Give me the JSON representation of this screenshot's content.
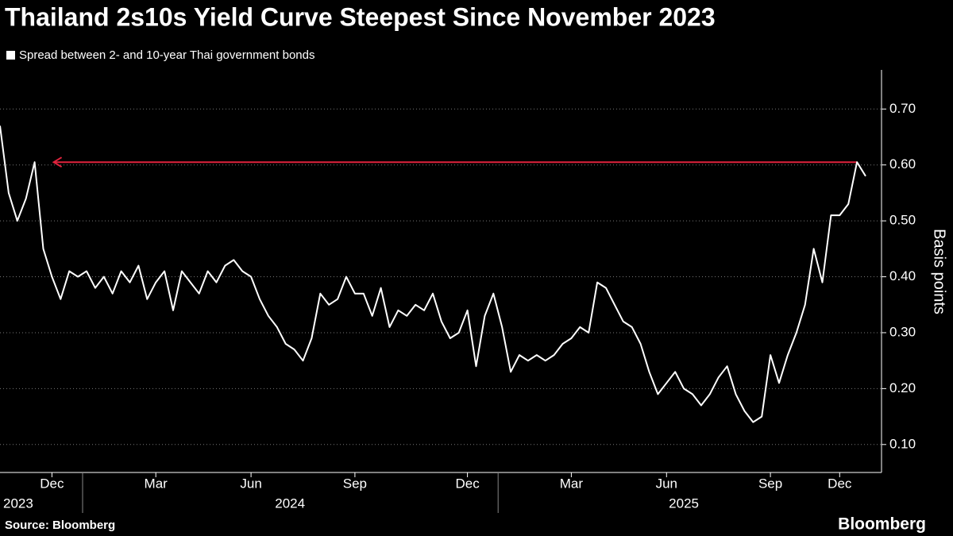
{
  "chart_data": {
    "type": "line",
    "title": "Thailand 2s10s Yield Curve Steepest Since November 2023",
    "y_label": "Basis points",
    "source": "Source: Bloomberg",
    "brand": "Bloomberg",
    "categories": [
      null,
      null,
      null,
      null,
      null,
      null,
      "Dec",
      null,
      null,
      null,
      null,
      null,
      null,
      null,
      null,
      null,
      null,
      null,
      "Mar",
      null,
      null,
      null,
      null,
      null,
      null,
      null,
      null,
      null,
      null,
      "Jun",
      null,
      null,
      null,
      null,
      null,
      null,
      null,
      null,
      null,
      null,
      null,
      "Sep",
      null,
      null,
      null,
      null,
      null,
      null,
      null,
      null,
      null,
      null,
      null,
      null,
      "Dec",
      null,
      null,
      null,
      null,
      null,
      null,
      null,
      null,
      null,
      null,
      null,
      "Mar",
      null,
      null,
      null,
      null,
      null,
      null,
      null,
      null,
      null,
      null,
      "Jun",
      null,
      null,
      null,
      null,
      null,
      null,
      null,
      null,
      null,
      null,
      null,
      "Sep",
      null,
      null,
      null,
      null,
      null,
      null,
      null,
      "Dec",
      null,
      null,
      null
    ],
    "x_groups": [
      {
        "label": "2023",
        "count": 10
      },
      {
        "label": "2024",
        "count": 48
      },
      {
        "label": "2025",
        "count": 43
      }
    ],
    "series": [
      {
        "name": "Spread between 2- and 10-year Thai government bonds",
        "color": "#ffffff",
        "values": [
          0.67,
          0.55,
          0.5,
          0.54,
          0.605,
          0.45,
          0.4,
          0.36,
          0.41,
          0.4,
          0.41,
          0.38,
          0.4,
          0.37,
          0.41,
          0.39,
          0.42,
          0.36,
          0.39,
          0.41,
          0.34,
          0.41,
          0.39,
          0.37,
          0.41,
          0.39,
          0.42,
          0.43,
          0.41,
          0.4,
          0.36,
          0.33,
          0.31,
          0.28,
          0.27,
          0.25,
          0.29,
          0.37,
          0.35,
          0.36,
          0.4,
          0.37,
          0.37,
          0.33,
          0.38,
          0.31,
          0.34,
          0.33,
          0.35,
          0.34,
          0.37,
          0.32,
          0.29,
          0.3,
          0.34,
          0.24,
          0.33,
          0.37,
          0.31,
          0.23,
          0.26,
          0.25,
          0.26,
          0.25,
          0.26,
          0.28,
          0.29,
          0.31,
          0.3,
          0.39,
          0.38,
          0.35,
          0.32,
          0.31,
          0.28,
          0.23,
          0.19,
          0.21,
          0.23,
          0.2,
          0.19,
          0.17,
          0.19,
          0.22,
          0.24,
          0.19,
          0.16,
          0.14,
          0.15,
          0.26,
          0.21,
          0.26,
          0.3,
          0.35,
          0.45,
          0.39,
          0.51,
          0.51,
          0.53,
          0.605,
          0.58
        ]
      }
    ],
    "reference_line": {
      "value": 0.605,
      "color": "#e0233d"
    },
    "ylim": [
      0.05,
      0.77
    ],
    "yticks": [
      {
        "value": 0.1,
        "label": "0.10"
      },
      {
        "value": 0.2,
        "label": "0.20"
      },
      {
        "value": 0.3,
        "label": "0.30"
      },
      {
        "value": 0.4,
        "label": "0.40"
      },
      {
        "value": 0.5,
        "label": "0.50"
      },
      {
        "value": 0.6,
        "label": "0.60"
      },
      {
        "value": 0.7,
        "label": "0.70"
      }
    ],
    "grid": true
  }
}
